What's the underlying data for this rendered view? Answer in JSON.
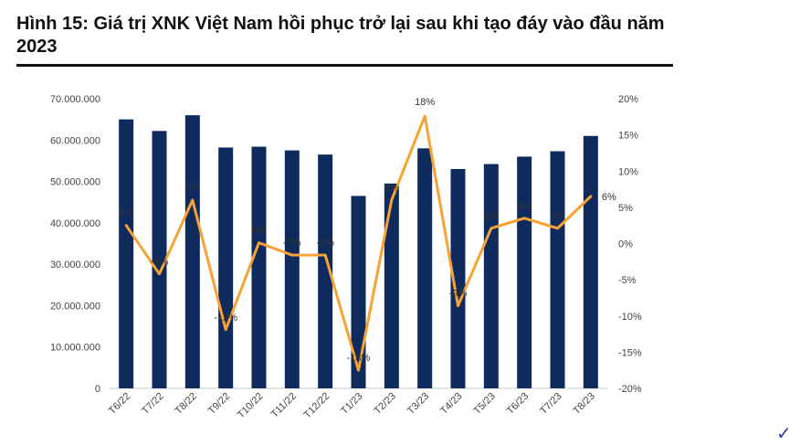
{
  "header": {
    "title": "Hình 15: Giá trị XNK Việt Nam hồi phục trở lại sau khi tạo đáy vào đầu năm 2023"
  },
  "chart_data": {
    "type": "bar+line",
    "title": "",
    "categories": [
      "T6/22",
      "T7/22",
      "T8/22",
      "T9/22",
      "T10/22",
      "T11/22",
      "T12/22",
      "T1/23",
      "T2/23",
      "T3/23",
      "T4/23",
      "T5/23",
      "T6/23",
      "T7/23",
      "T8/23"
    ],
    "series": [
      {
        "name": "",
        "type": "bar",
        "axis": "left",
        "color": "#0f2a5c",
        "values": [
          65000000,
          62200000,
          66000000,
          58200000,
          58400000,
          57500000,
          56500000,
          46500000,
          49500000,
          58000000,
          53000000,
          54200000,
          56000000,
          57300000,
          61000000
        ]
      },
      {
        "name": "",
        "type": "line",
        "axis": "right",
        "color": "#f7a234",
        "values": [
          2.5,
          -4.2,
          6,
          -11.9,
          0.1,
          -1.6,
          -1.6,
          -17.5,
          6,
          17.6,
          -8.6,
          2.1,
          3.5,
          2.1,
          6.5
        ],
        "labels": [
          "3%",
          "-4%",
          "6%",
          "-12%",
          "0%",
          "-2%",
          "-2%",
          "-18%",
          "6%",
          "18%",
          "-9%",
          "2%",
          "4%",
          "2%",
          "6%"
        ]
      }
    ],
    "y_left": {
      "min": 0,
      "max": 70000000,
      "step": 10000000,
      "ticks": [
        "0",
        "10.000.000",
        "20.000.000",
        "30.000.000",
        "40.000.000",
        "50.000.000",
        "60.000.000",
        "70.000.000"
      ]
    },
    "y_right": {
      "min": -20,
      "max": 20,
      "step": 5,
      "ticks": [
        "-20%",
        "-15%",
        "-10%",
        "-5%",
        "0%",
        "5%",
        "10%",
        "15%",
        "20%"
      ]
    },
    "grid": false,
    "legend": "none"
  },
  "footer": {
    "mark": "✓"
  }
}
